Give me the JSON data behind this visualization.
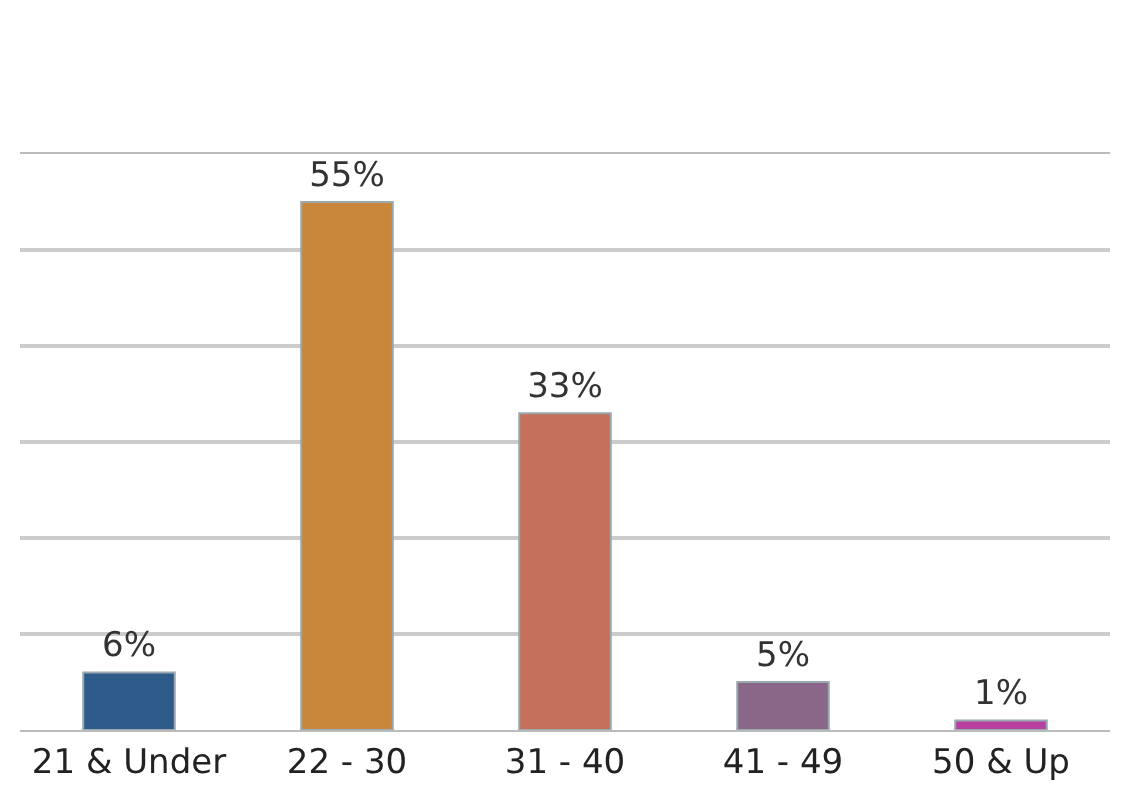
{
  "chart_data": {
    "type": "bar",
    "categories": [
      "21 & Under",
      "22 - 30",
      "31 - 40",
      "41 - 49",
      "50 & Up"
    ],
    "values": [
      6,
      55,
      33,
      5,
      1
    ],
    "colors": [
      "#2e5b8a",
      "#c8873a",
      "#c4705c",
      "#8a6688",
      "#b8409e"
    ],
    "data_labels": true,
    "grid": "y",
    "legend": false,
    "ylim": [
      0,
      60
    ],
    "yticks": [
      {
        "value": 0,
        "label": null
      },
      {
        "value": 10,
        "label": null
      },
      {
        "value": 20,
        "label": null
      },
      {
        "value": 30,
        "label": null
      },
      {
        "value": 40,
        "label": null
      },
      {
        "value": 50,
        "label": null
      },
      {
        "value": 60,
        "label": null
      }
    ],
    "value_labels": [
      "6%",
      "55%",
      "33%",
      "5%",
      "1%"
    ],
    "tick_labels": "x"
  }
}
